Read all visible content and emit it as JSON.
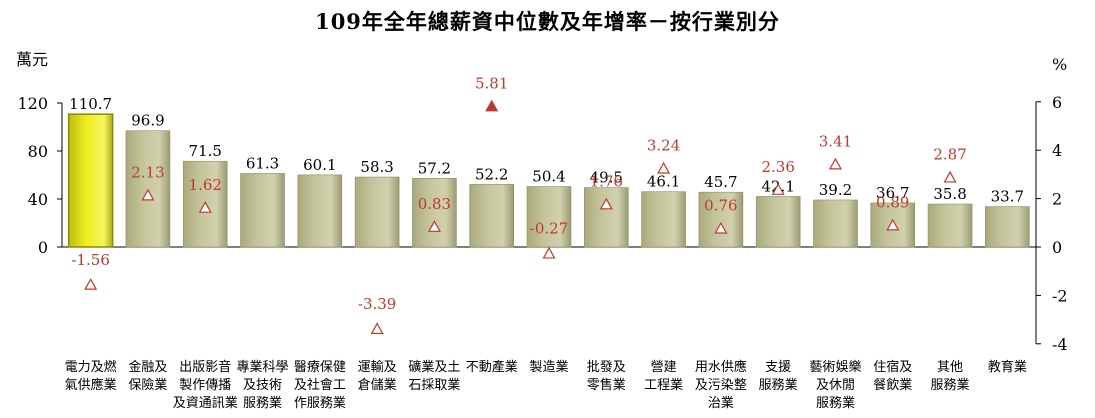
{
  "chart_data": {
    "type": "bar",
    "title": "109年全年總薪資中位數及年增率－按行業別分",
    "ylabel_left": "萬元",
    "ylabel_right": "%",
    "ylim_left": [
      0,
      120
    ],
    "yticks_left": [
      0,
      40,
      80,
      120
    ],
    "ylim_right": [
      -4,
      6
    ],
    "yticks_right": [
      -4,
      -2,
      0,
      2,
      4,
      6
    ],
    "categories": [
      [
        "電力及燃",
        "氣供應業"
      ],
      [
        "金融及",
        "保險業"
      ],
      [
        "出版影音",
        "製作傳播",
        "及資通訊業"
      ],
      [
        "專業科學",
        "及技術",
        "服務業"
      ],
      [
        "醫療保健",
        "及社會工",
        "作服務業"
      ],
      [
        "運輸及",
        "倉儲業"
      ],
      [
        "礦業及土",
        "石採取業"
      ],
      [
        "不動產業"
      ],
      [
        "製造業"
      ],
      [
        "批發及",
        "零售業"
      ],
      [
        "營建",
        "工程業"
      ],
      [
        "用水供應",
        "及污染整",
        "治業"
      ],
      [
        "支援",
        "服務業"
      ],
      [
        "藝術娛樂",
        "及休閒",
        "服務業"
      ],
      [
        "住宿及",
        "餐飲業"
      ],
      [
        "其他",
        "服務業"
      ],
      [
        "教育業"
      ]
    ],
    "series": [
      {
        "axis": "left",
        "kind": "bar",
        "values": [
          110.7,
          96.9,
          71.5,
          61.3,
          60.1,
          58.3,
          57.2,
          52.2,
          50.4,
          49.5,
          46.1,
          45.7,
          42.1,
          39.2,
          36.7,
          35.8,
          33.7
        ],
        "labels": [
          "110.7",
          "96.9",
          "71.5",
          "61.3",
          "60.1",
          "58.3",
          "57.2",
          "52.2",
          "50.4",
          "49.5",
          "46.1",
          "45.7",
          "42.1",
          "39.2",
          "36.7",
          "35.8",
          "33.7"
        ]
      },
      {
        "axis": "right",
        "kind": "marker",
        "values": [
          -1.56,
          2.13,
          1.62,
          null,
          null,
          -3.39,
          0.83,
          5.81,
          -0.27,
          1.76,
          3.24,
          0.76,
          2.36,
          3.41,
          0.89,
          2.87,
          null
        ],
        "labels": [
          "-1.56",
          "2.13",
          "1.62",
          "",
          "",
          "-3.39",
          "0.83",
          "5.81",
          "-0.27",
          "1.76",
          "3.24",
          "0.76",
          "2.36",
          "3.41",
          "0.89",
          "2.87",
          ""
        ]
      }
    ],
    "highlight_index": 0,
    "colors": {
      "bar": "#c3c39a",
      "bar_highlight": "#eeee22",
      "rate": "#c0392b",
      "axis": "#000000"
    }
  }
}
